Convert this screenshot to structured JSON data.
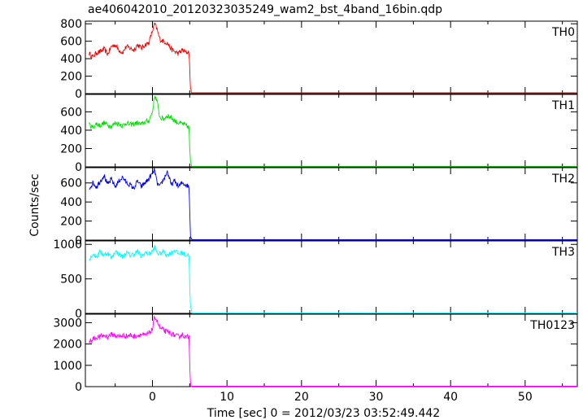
{
  "title": "ae406042010_20120323035249_wam2_bst_4band_16bin.qdp",
  "xlabel": "Time [sec] 0 = 2012/03/23 03:52:49.442",
  "ylabel": "Counts/sec",
  "chart_data": [
    {
      "type": "line",
      "panel": "TH0",
      "color": "#ff0000",
      "xlim": [
        -9,
        57
      ],
      "ylim": [
        0,
        830
      ],
      "yticks": [
        0,
        200,
        400,
        600,
        800
      ],
      "x": [
        -8.5,
        -8,
        -7.5,
        -7,
        -6.5,
        -6,
        -5.5,
        -5,
        -4.5,
        -4,
        -3.5,
        -3,
        -2.5,
        -2,
        -1.5,
        -1,
        -0.5,
        0,
        0.3,
        0.6,
        1,
        1.5,
        2,
        2.5,
        3,
        3.5,
        4,
        4.5,
        4.9,
        5,
        5.1,
        5.3,
        57
      ],
      "y": [
        460,
        420,
        470,
        480,
        510,
        450,
        540,
        560,
        500,
        470,
        540,
        520,
        500,
        560,
        520,
        560,
        580,
        720,
        800,
        740,
        620,
        600,
        580,
        510,
        480,
        460,
        500,
        470,
        480,
        280,
        60,
        10,
        10
      ]
    },
    {
      "type": "line",
      "panel": "TH1",
      "color": "#00e000",
      "xlim": [
        -9,
        57
      ],
      "ylim": [
        0,
        790
      ],
      "yticks": [
        0,
        200,
        400,
        600
      ],
      "x": [
        -8.5,
        -8,
        -7.5,
        -7,
        -6.5,
        -6,
        -5.5,
        -5,
        -4.5,
        -4,
        -3.5,
        -3,
        -2.5,
        -2,
        -1.5,
        -1,
        -0.5,
        0,
        0.3,
        0.6,
        1,
        1.5,
        2,
        2.5,
        3,
        3.5,
        4,
        4.5,
        4.9,
        5,
        5.1,
        5.3,
        57
      ],
      "y": [
        460,
        430,
        470,
        450,
        480,
        460,
        440,
        480,
        470,
        450,
        480,
        460,
        470,
        480,
        460,
        490,
        500,
        600,
        780,
        720,
        540,
        520,
        560,
        540,
        500,
        480,
        470,
        450,
        430,
        200,
        40,
        5,
        5
      ]
    },
    {
      "type": "line",
      "panel": "TH2",
      "color": "#0000ff",
      "xlim": [
        -9,
        57
      ],
      "ylim": [
        0,
        760
      ],
      "yticks": [
        0,
        200,
        400,
        600
      ],
      "x": [
        -8.5,
        -8,
        -7.5,
        -7,
        -6.5,
        -6,
        -5.5,
        -5,
        -4.5,
        -4,
        -3.5,
        -3,
        -2.5,
        -2,
        -1.5,
        -1,
        -0.5,
        0,
        0.3,
        0.6,
        1,
        1.5,
        2,
        2.5,
        3,
        3.5,
        4,
        4.5,
        4.9,
        5,
        5.1,
        5.3,
        57
      ],
      "y": [
        540,
        600,
        560,
        620,
        680,
        580,
        640,
        560,
        620,
        660,
        600,
        580,
        540,
        620,
        560,
        600,
        640,
        700,
        740,
        600,
        560,
        640,
        720,
        580,
        620,
        560,
        600,
        580,
        560,
        320,
        60,
        5,
        5
      ]
    },
    {
      "type": "line",
      "panel": "TH3",
      "color": "#00ffff",
      "xlim": [
        -9,
        57
      ],
      "ylim": [
        0,
        1050
      ],
      "yticks": [
        0,
        500,
        1000
      ],
      "x": [
        -8.5,
        -8,
        -7.5,
        -7,
        -6.5,
        -6,
        -5.5,
        -5,
        -4.5,
        -4,
        -3.5,
        -3,
        -2.5,
        -2,
        -1.5,
        -1,
        -0.5,
        0,
        0.3,
        0.6,
        1,
        1.5,
        2,
        2.5,
        3,
        3.5,
        4,
        4.5,
        4.9,
        5,
        5.1,
        5.3,
        57
      ],
      "y": [
        780,
        860,
        820,
        900,
        840,
        880,
        800,
        900,
        860,
        820,
        880,
        840,
        860,
        900,
        820,
        880,
        860,
        900,
        960,
        880,
        860,
        900,
        840,
        880,
        920,
        860,
        880,
        840,
        860,
        400,
        80,
        5,
        5
      ]
    },
    {
      "type": "line",
      "panel": "TH0123",
      "color": "#ff00ff",
      "xlim": [
        -9,
        57
      ],
      "ylim": [
        0,
        3400
      ],
      "yticks": [
        0,
        1000,
        2000,
        3000
      ],
      "x": [
        -8.5,
        -8,
        -7.5,
        -7,
        -6.5,
        -6,
        -5.5,
        -5,
        -4.5,
        -4,
        -3.5,
        -3,
        -2.5,
        -2,
        -1.5,
        -1,
        -0.5,
        0,
        0.3,
        0.6,
        1,
        1.5,
        2,
        2.5,
        3,
        3.5,
        4,
        4.5,
        4.9,
        5,
        5.1,
        5.3,
        57
      ],
      "y": [
        2100,
        2250,
        2300,
        2350,
        2400,
        2350,
        2450,
        2400,
        2350,
        2400,
        2380,
        2420,
        2350,
        2400,
        2450,
        2400,
        2500,
        2700,
        3300,
        3100,
        2750,
        2650,
        2550,
        2500,
        2400,
        2350,
        2450,
        2300,
        2350,
        1200,
        150,
        20,
        20
      ]
    }
  ],
  "xticks": [
    0,
    10,
    20,
    30,
    40,
    50
  ]
}
